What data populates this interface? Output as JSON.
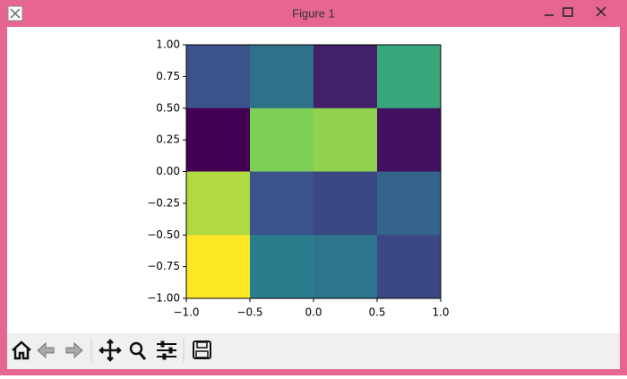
{
  "window": {
    "title": "Figure 1"
  },
  "chart_data": {
    "type": "heatmap",
    "values": [
      [
        0.25,
        0.37,
        0.1,
        0.6
      ],
      [
        0.0,
        0.8,
        0.83,
        0.05
      ],
      [
        0.88,
        0.25,
        0.22,
        0.32
      ],
      [
        1.0,
        0.42,
        0.39,
        0.22
      ]
    ],
    "cmap": [
      "#440154",
      "#3b528b",
      "#21918c",
      "#5ec962",
      "#fde725"
    ],
    "clim": [
      0,
      1
    ],
    "xlim": [
      -1,
      1
    ],
    "ylim": [
      -1,
      1
    ],
    "xticks": [
      {
        "value": -1,
        "label": "−1.0"
      },
      {
        "value": -0.5,
        "label": "−0.5"
      },
      {
        "value": 0,
        "label": "0.0"
      },
      {
        "value": 0.5,
        "label": "0.5"
      },
      {
        "value": 1,
        "label": "1.0"
      }
    ],
    "yticks": [
      {
        "value": -1,
        "label": "−1.00"
      },
      {
        "value": -0.75,
        "label": "−0.75"
      },
      {
        "value": -0.5,
        "label": "−0.50"
      },
      {
        "value": -0.25,
        "label": "−0.25"
      },
      {
        "value": 0,
        "label": "0.00"
      },
      {
        "value": 0.25,
        "label": "0.25"
      },
      {
        "value": 0.5,
        "label": "0.50"
      },
      {
        "value": 0.75,
        "label": "0.75"
      },
      {
        "value": 1,
        "label": "1.00"
      }
    ]
  }
}
